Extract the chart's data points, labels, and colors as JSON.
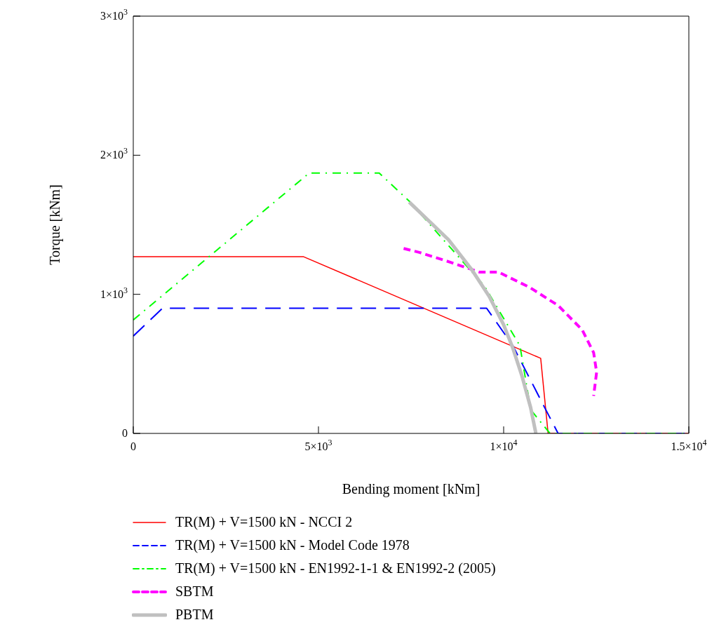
{
  "chart_data": {
    "type": "line",
    "xlabel": "Bending moment [kNm]",
    "ylabel": "Torque [kNm]",
    "xlim": [
      0,
      15000
    ],
    "ylim": [
      0,
      3000
    ],
    "xticks": [
      0,
      {
        "value": 5000,
        "label": "5×10$^{3}$"
      },
      {
        "value": 10000,
        "label": "1×10$^{4}$"
      },
      {
        "value": 15000,
        "label": "1.5×10$^{4}$"
      }
    ],
    "yticks": [
      0,
      {
        "value": 1000,
        "label": "1×10$^{3}$"
      },
      {
        "value": 2000,
        "label": "2×10$^{3}$"
      },
      {
        "value": 3000,
        "label": "3×10$^{3}$"
      }
    ],
    "grid": false,
    "legend": "bottom",
    "marker": "none",
    "series": [
      {
        "name": "TR(M) + V=1500 kN - NCCI 2",
        "color": "#ff0000",
        "line_style": "solid",
        "x": [
          0,
          4600,
          11000,
          11200,
          15000
        ],
        "values": [
          1270,
          1270,
          540,
          0,
          0
        ]
      },
      {
        "name": "TR(M) + V=1500 kN - Model Code 1978",
        "color": "#0000ff",
        "line_style": "dashed",
        "x": [
          0,
          790,
          9540,
          10250,
          11080,
          11470,
          15000
        ],
        "values": [
          700,
          900,
          900,
          630,
          200,
          0,
          0
        ]
      },
      {
        "name": "TR(M) + V=1500 kN - EN1992-1-1 & EN1992-2 (2005)",
        "color": "#00ff00",
        "line_style": "dashdot",
        "x": [
          0,
          4750,
          6640,
          7450,
          9480,
          10440,
          10730,
          11250,
          15000
        ],
        "values": [
          816,
          1872,
          1872,
          1670,
          1060,
          630,
          170,
          0,
          0
        ]
      },
      {
        "name": "SBTM",
        "color": "#ff00ff",
        "line_style": "dashed",
        "x": [
          7300,
          7740,
          8570,
          9340,
          9860,
          10700,
          11470,
          12120,
          12430,
          12510,
          12430
        ],
        "values": [
          1330,
          1300,
          1230,
          1160,
          1160,
          1050,
          920,
          745,
          580,
          440,
          270
        ]
      },
      {
        "name": "PBTM",
        "color": "#c0c0c0",
        "line_style": "solid",
        "x": [
          7450,
          8510,
          9150,
          9610,
          10000,
          10250,
          10500,
          10730,
          10870
        ],
        "values": [
          1663,
          1393,
          1173,
          985,
          781,
          612,
          408,
          184,
          0
        ]
      }
    ]
  }
}
